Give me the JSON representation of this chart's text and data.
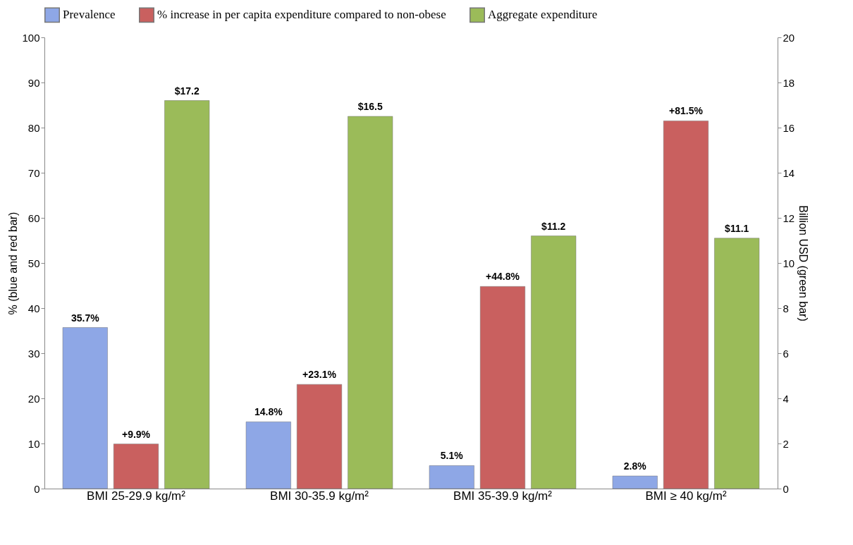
{
  "chart_data": {
    "type": "bar",
    "categories": [
      "BMI 25-29.9 kg/m²",
      "BMI 30-35.9 kg/m²",
      "BMI 35-39.9 kg/m²",
      "BMI ≥ 40 kg/m²"
    ],
    "ylabel": "% (blue and red bar)",
    "y2label": "Billion USD (green bar)",
    "ylim": [
      0,
      100
    ],
    "yticks": [
      0,
      10,
      20,
      30,
      40,
      50,
      60,
      70,
      80,
      90,
      100
    ],
    "y2lim": [
      0,
      20
    ],
    "y2ticks": [
      0,
      2,
      4,
      6,
      8,
      10,
      12,
      14,
      16,
      18,
      20
    ],
    "legend": "top",
    "series": [
      {
        "name": "Prevalence",
        "color": "#8ea7e6",
        "values": [
          35.7,
          14.8,
          5.1,
          2.8
        ],
        "value_labels": [
          "35.7%",
          "14.8%",
          "5.1%",
          "2.8%"
        ]
      },
      {
        "name": "% increase in per capita expenditure compared to non-obese",
        "color": "#c9605f",
        "values": [
          9.9,
          23.1,
          44.8,
          81.5
        ],
        "value_labels": [
          "+9.9%",
          "+23.1%",
          "+44.8%",
          "+81.5%"
        ]
      },
      {
        "name": "Aggregate expenditure",
        "color": "#9bbb59",
        "axis": "y2",
        "values": [
          17.2,
          16.5,
          11.2,
          11.1
        ],
        "value_labels": [
          "$17.2",
          "$16.5",
          "$11.2",
          "$11.1"
        ]
      }
    ]
  }
}
